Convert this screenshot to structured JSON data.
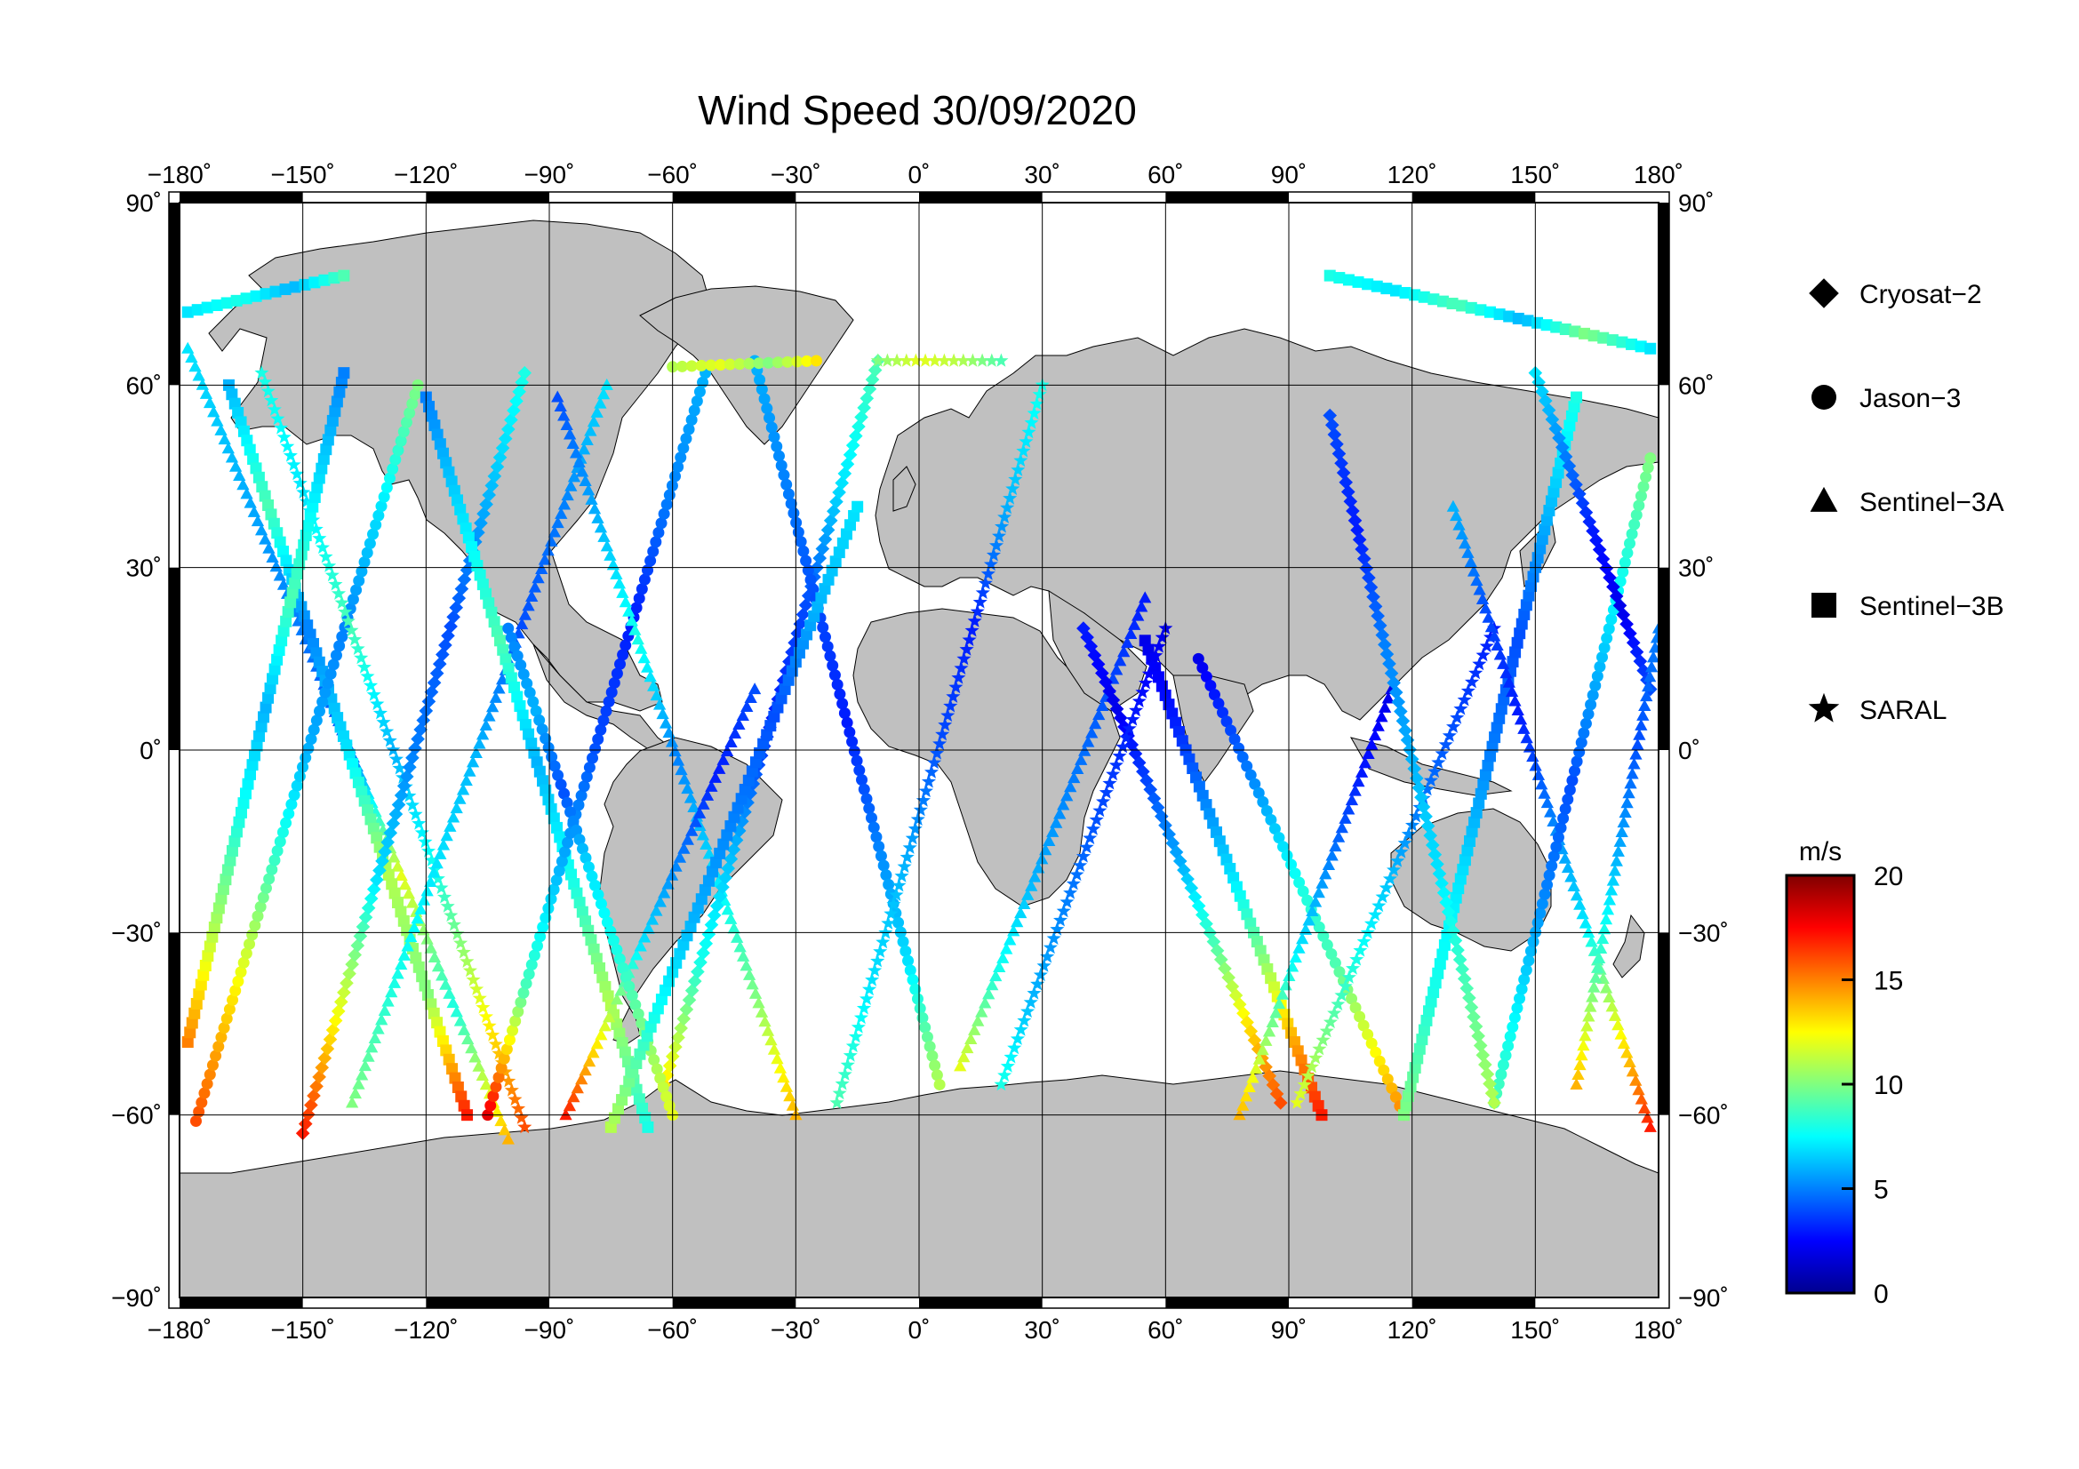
{
  "title": "Wind Speed 30/09/2020",
  "axes": {
    "lon_ticks": [
      {
        "value": -180,
        "label": "−180˚"
      },
      {
        "value": -150,
        "label": "−150˚"
      },
      {
        "value": -120,
        "label": "−120˚"
      },
      {
        "value": -90,
        "label": "−90˚"
      },
      {
        "value": -60,
        "label": "−60˚"
      },
      {
        "value": -30,
        "label": "−30˚"
      },
      {
        "value": 0,
        "label": "0˚"
      },
      {
        "value": 30,
        "label": "30˚"
      },
      {
        "value": 60,
        "label": "60˚"
      },
      {
        "value": 90,
        "label": "90˚"
      },
      {
        "value": 120,
        "label": "120˚"
      },
      {
        "value": 150,
        "label": "150˚"
      },
      {
        "value": 180,
        "label": "180˚"
      }
    ],
    "lat_ticks": [
      {
        "value": 90,
        "label": "90˚"
      },
      {
        "value": 60,
        "label": "60˚"
      },
      {
        "value": 30,
        "label": "30˚"
      },
      {
        "value": 0,
        "label": "0˚"
      },
      {
        "value": -30,
        "label": "−30˚"
      },
      {
        "value": -60,
        "label": "−60˚"
      },
      {
        "value": -90,
        "label": "−90˚"
      }
    ],
    "xlim": [
      -180,
      180
    ],
    "ylim": [
      -90,
      90
    ],
    "grid": true
  },
  "legend": {
    "placement": "right",
    "items": [
      {
        "label": "Cryosat−2",
        "marker": "diamond"
      },
      {
        "label": "Jason−3",
        "marker": "circle"
      },
      {
        "label": "Sentinel−3A",
        "marker": "triangle"
      },
      {
        "label": "Sentinel−3B",
        "marker": "square"
      },
      {
        "label": "SARAL",
        "marker": "star"
      }
    ]
  },
  "colorbar": {
    "unit": "m/s",
    "min": 0,
    "max": 20,
    "ticks": [
      {
        "value": 0,
        "label": "0"
      },
      {
        "value": 5,
        "label": "5"
      },
      {
        "value": 10,
        "label": "10"
      },
      {
        "value": 15,
        "label": "15"
      },
      {
        "value": 20,
        "label": "20"
      }
    ],
    "colormap": [
      "#00008f",
      "#0000ff",
      "#0080ff",
      "#00ffff",
      "#80ff80",
      "#ffff00",
      "#ff8000",
      "#ff0000",
      "#800000"
    ]
  },
  "colors": {
    "land": "#c0c0c0",
    "ocean": "#ffffff",
    "grid": "#000000"
  },
  "chart_data": {
    "type": "scatter",
    "tracks": [
      {
        "marker": "triangle",
        "start": [
          -178,
          66
        ],
        "end": [
          -100,
          -64
        ],
        "speeds": [
          7,
          6,
          5,
          4,
          12,
          8,
          14
        ]
      },
      {
        "marker": "square",
        "start": [
          -168,
          60
        ],
        "end": [
          -110,
          -60
        ],
        "speeds": [
          6,
          9,
          5,
          7,
          11,
          10,
          17
        ]
      },
      {
        "marker": "circle",
        "start": [
          -176,
          -61
        ],
        "end": [
          -122,
          60
        ],
        "speeds": [
          16,
          13,
          9,
          6,
          5,
          7,
          10
        ]
      },
      {
        "marker": "star",
        "start": [
          -160,
          62
        ],
        "end": [
          -96,
          -62
        ],
        "speeds": [
          8,
          7,
          9,
          6,
          8,
          12,
          16
        ]
      },
      {
        "marker": "diamond",
        "start": [
          -150,
          -63
        ],
        "end": [
          -96,
          62
        ],
        "speeds": [
          17,
          12,
          7,
          5,
          4,
          6,
          8
        ]
      },
      {
        "marker": "triangle",
        "start": [
          -138,
          -58
        ],
        "end": [
          -76,
          60
        ],
        "speeds": [
          10,
          8,
          7,
          6,
          4,
          5,
          7
        ]
      },
      {
        "marker": "square",
        "start": [
          -120,
          58
        ],
        "end": [
          -66,
          -62
        ],
        "speeds": [
          5,
          7,
          9,
          6,
          8,
          11,
          8
        ]
      },
      {
        "marker": "circle",
        "start": [
          -105,
          -60
        ],
        "end": [
          -52,
          62
        ],
        "speeds": [
          18,
          9,
          6,
          4,
          3,
          5,
          6
        ]
      },
      {
        "marker": "triangle",
        "start": [
          -88,
          58
        ],
        "end": [
          -30,
          -60
        ],
        "speeds": [
          4,
          6,
          8,
          5,
          7,
          10,
          14
        ]
      },
      {
        "marker": "diamond",
        "start": [
          -62,
          -55
        ],
        "end": [
          -10,
          64
        ],
        "speeds": [
          13,
          8,
          6,
          3,
          4,
          7,
          9
        ]
      },
      {
        "marker": "circle",
        "start": [
          -40,
          64
        ],
        "end": [
          5,
          -55
        ],
        "speeds": [
          6,
          5,
          4,
          3,
          5,
          7,
          11
        ]
      },
      {
        "marker": "star",
        "start": [
          -20,
          -58
        ],
        "end": [
          30,
          60
        ],
        "speeds": [
          9,
          7,
          6,
          4,
          3,
          6,
          8
        ]
      },
      {
        "marker": "triangle",
        "start": [
          10,
          -52
        ],
        "end": [
          55,
          25
        ],
        "speeds": [
          12,
          8,
          6,
          5,
          4,
          3
        ]
      },
      {
        "marker": "diamond",
        "start": [
          40,
          20
        ],
        "end": [
          88,
          -58
        ],
        "speeds": [
          3,
          2,
          4,
          6,
          9,
          13,
          16
        ]
      },
      {
        "marker": "square",
        "start": [
          55,
          18
        ],
        "end": [
          98,
          -60
        ],
        "speeds": [
          2,
          3,
          5,
          7,
          10,
          14,
          17
        ]
      },
      {
        "marker": "circle",
        "start": [
          68,
          15
        ],
        "end": [
          118,
          -60
        ],
        "speeds": [
          2,
          4,
          6,
          8,
          9,
          12,
          15
        ]
      },
      {
        "marker": "triangle",
        "start": [
          78,
          -60
        ],
        "end": [
          115,
          10
        ],
        "speeds": [
          14,
          10,
          7,
          5,
          3,
          2
        ]
      },
      {
        "marker": "star",
        "start": [
          92,
          -58
        ],
        "end": [
          140,
          20
        ],
        "speeds": [
          12,
          9,
          7,
          5,
          4,
          3
        ]
      },
      {
        "marker": "square",
        "start": [
          118,
          -60
        ],
        "end": [
          160,
          58
        ],
        "speeds": [
          10,
          8,
          7,
          5,
          4,
          6,
          8
        ]
      },
      {
        "marker": "triangle",
        "start": [
          130,
          40
        ],
        "end": [
          178,
          -62
        ],
        "speeds": [
          6,
          4,
          3,
          5,
          7,
          12,
          17
        ]
      },
      {
        "marker": "circle",
        "start": [
          140,
          -58
        ],
        "end": [
          178,
          48
        ],
        "speeds": [
          9,
          7,
          5,
          4,
          6,
          8,
          10
        ]
      },
      {
        "marker": "diamond",
        "start": [
          150,
          62
        ],
        "end": [
          178,
          10
        ],
        "speeds": [
          7,
          5,
          3,
          2,
          4
        ]
      },
      {
        "marker": "square",
        "start": [
          -178,
          -48
        ],
        "end": [
          -140,
          62
        ],
        "speeds": [
          15,
          11,
          8,
          6,
          9,
          7,
          5
        ]
      },
      {
        "marker": "triangle",
        "start": [
          -86,
          -60
        ],
        "end": [
          -40,
          10
        ],
        "speeds": [
          17,
          12,
          7,
          5,
          3,
          4
        ]
      },
      {
        "marker": "star",
        "start": [
          20,
          -55
        ],
        "end": [
          60,
          20
        ],
        "speeds": [
          8,
          6,
          5,
          4,
          3,
          2
        ]
      },
      {
        "marker": "circle",
        "start": [
          -100,
          20
        ],
        "end": [
          -60,
          -60
        ],
        "speeds": [
          5,
          6,
          4,
          7,
          8,
          10,
          12
        ]
      },
      {
        "marker": "square",
        "start": [
          -75,
          -62
        ],
        "end": [
          -15,
          40
        ],
        "speeds": [
          11,
          8,
          6,
          5,
          4,
          6,
          7
        ]
      },
      {
        "marker": "diamond",
        "start": [
          100,
          55
        ],
        "end": [
          140,
          -58
        ],
        "speeds": [
          4,
          3,
          5,
          6,
          7,
          9,
          11
        ]
      },
      {
        "marker": "triangle",
        "start": [
          160,
          -55
        ],
        "end": [
          180,
          20
        ],
        "speeds": [
          14,
          9,
          6,
          4,
          5
        ]
      },
      {
        "marker": "square",
        "start": [
          -178,
          72
        ],
        "end": [
          -140,
          78
        ],
        "speeds": [
          7,
          8,
          6,
          9
        ]
      },
      {
        "marker": "square",
        "start": [
          100,
          78
        ],
        "end": [
          178,
          66
        ],
        "speeds": [
          8,
          7,
          9,
          6,
          10,
          7
        ]
      },
      {
        "marker": "star",
        "start": [
          -10,
          64
        ],
        "end": [
          20,
          64
        ],
        "speeds": [
          10,
          12,
          11,
          9
        ]
      },
      {
        "marker": "circle",
        "start": [
          -60,
          63
        ],
        "end": [
          -25,
          64
        ],
        "speeds": [
          11,
          12,
          10,
          13
        ]
      }
    ]
  }
}
